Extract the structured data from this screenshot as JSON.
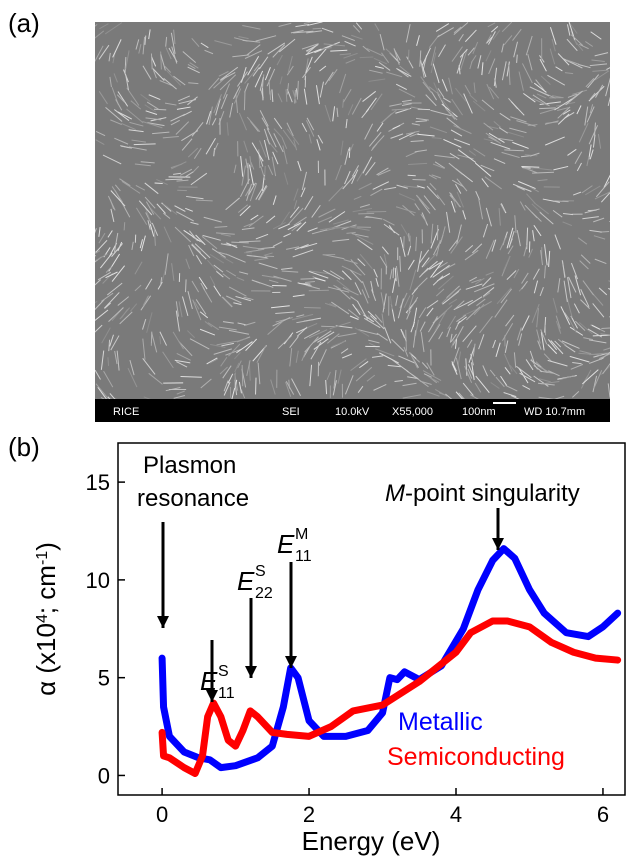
{
  "panel_a": {
    "label": "(a)",
    "info_bar": [
      "RICE",
      "SEI",
      "10.0kV",
      "X55,000",
      "100nm",
      "WD 10.7mm"
    ]
  },
  "chart_data": {
    "type": "line",
    "panel_label": "(b)",
    "x_label": "Energy (eV)",
    "y_label": [
      "α (x10",
      "4",
      "; cm",
      "-1",
      ")"
    ],
    "xlim": [
      -0.6,
      6.3
    ],
    "ylim": [
      -1,
      17
    ],
    "xticks": [
      0,
      2,
      4,
      6
    ],
    "yticks": [
      0,
      5,
      10,
      15
    ],
    "legend_position": "lower right",
    "series": [
      {
        "name": "Metallic",
        "color": "#0000ff",
        "x": [
          0,
          0.02,
          0.1,
          0.3,
          0.5,
          0.65,
          0.8,
          1.0,
          1.3,
          1.5,
          1.65,
          1.75,
          1.85,
          2.0,
          2.2,
          2.5,
          2.8,
          3.0,
          3.1,
          3.2,
          3.3,
          3.5,
          3.8,
          4.1,
          4.3,
          4.5,
          4.65,
          4.8,
          5.0,
          5.2,
          5.5,
          5.8,
          6.0,
          6.2
        ],
        "values": [
          6.0,
          3.5,
          2.0,
          1.2,
          0.9,
          0.8,
          0.4,
          0.5,
          0.9,
          1.5,
          3.5,
          5.5,
          5.0,
          2.8,
          2.0,
          2.0,
          2.3,
          3.2,
          5.0,
          4.9,
          5.3,
          4.9,
          5.6,
          7.5,
          9.5,
          11.0,
          11.6,
          11.1,
          9.5,
          8.3,
          7.3,
          7.1,
          7.6,
          8.3
        ]
      },
      {
        "name": "Semiconducting",
        "color": "#ff0000",
        "x": [
          0,
          0.02,
          0.1,
          0.3,
          0.45,
          0.55,
          0.62,
          0.7,
          0.8,
          0.9,
          1.0,
          1.1,
          1.2,
          1.3,
          1.5,
          1.7,
          2.0,
          2.3,
          2.6,
          3.0,
          3.5,
          4.0,
          4.2,
          4.5,
          4.7,
          5.0,
          5.3,
          5.6,
          5.9,
          6.2
        ],
        "values": [
          2.2,
          1.0,
          0.9,
          0.4,
          0.1,
          1.0,
          3.0,
          3.7,
          3.0,
          1.8,
          1.5,
          2.3,
          3.3,
          3.0,
          2.2,
          2.1,
          2.0,
          2.5,
          3.3,
          3.6,
          4.8,
          6.3,
          7.3,
          7.9,
          7.9,
          7.6,
          6.8,
          6.3,
          6.0,
          5.9
        ]
      }
    ],
    "annotations": {
      "plasmon": [
        "Plasmon",
        "resonance"
      ],
      "e11s": {
        "letter": "E",
        "sub": "11",
        "sup": "S"
      },
      "e22s": {
        "letter": "E",
        "sub": "22",
        "sup": "S"
      },
      "e11m": {
        "letter": "E",
        "sub": "11",
        "sup": "M"
      },
      "mpoint": {
        "italic": "M",
        "rest": "-point singularity"
      }
    }
  }
}
